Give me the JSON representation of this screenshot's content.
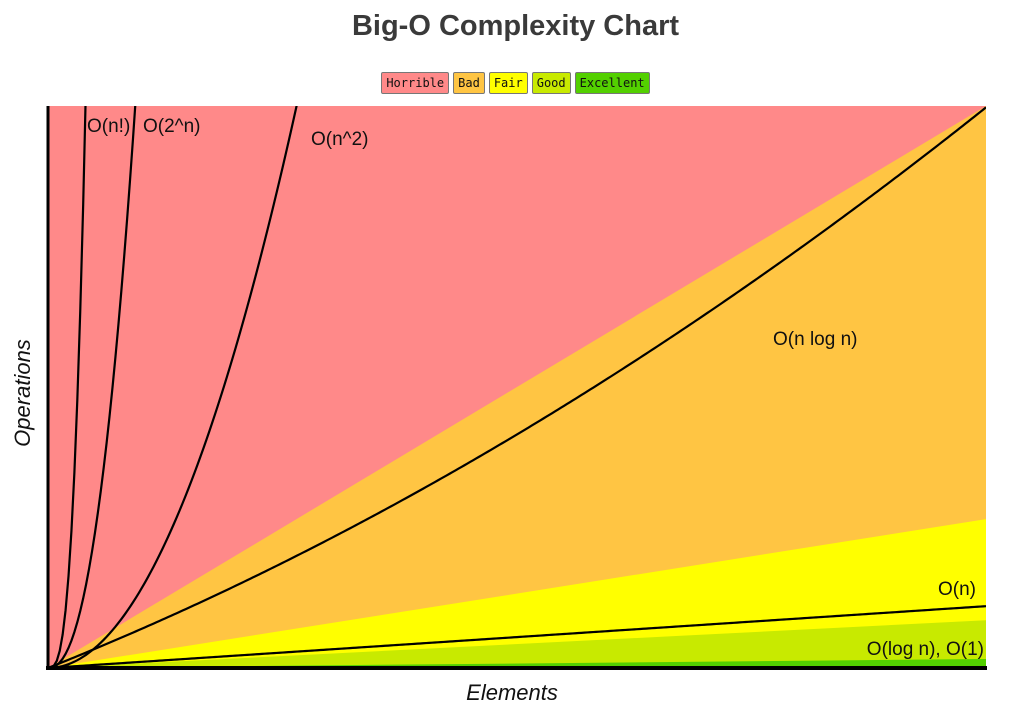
{
  "chart_data": {
    "type": "line",
    "title": "Big-O Complexity Chart",
    "xlabel": "Elements",
    "ylabel": "Operations",
    "legend_placement": "top-center",
    "legend": [
      {
        "label": "Horrible",
        "color": "#ff8989"
      },
      {
        "label": "Bad",
        "color": "#ffc543"
      },
      {
        "label": "Fair",
        "color": "#ffff00"
      },
      {
        "label": "Good",
        "color": "#c8ea00"
      },
      {
        "label": "Excellent",
        "color": "#53d000"
      }
    ],
    "regions": [
      {
        "name": "Horrible",
        "color": "#ff8989",
        "upper_slope": null
      },
      {
        "name": "Bad",
        "color": "#ffc543",
        "upper_slope": 1.0
      },
      {
        "name": "Fair",
        "color": "#ffff00",
        "upper_slope": 0.265
      },
      {
        "name": "Good",
        "color": "#c8ea00",
        "upper_slope": 0.085
      },
      {
        "name": "Excellent",
        "color": "#53d000",
        "upper_slope": 0.016
      }
    ],
    "series": [
      {
        "name": "O(n!)"
      },
      {
        "name": "O(2^n)"
      },
      {
        "name": "O(n^2)"
      },
      {
        "name": "O(n log n)"
      },
      {
        "name": "O(n)"
      },
      {
        "name": "O(log n), O(1)"
      }
    ],
    "grid": false
  }
}
